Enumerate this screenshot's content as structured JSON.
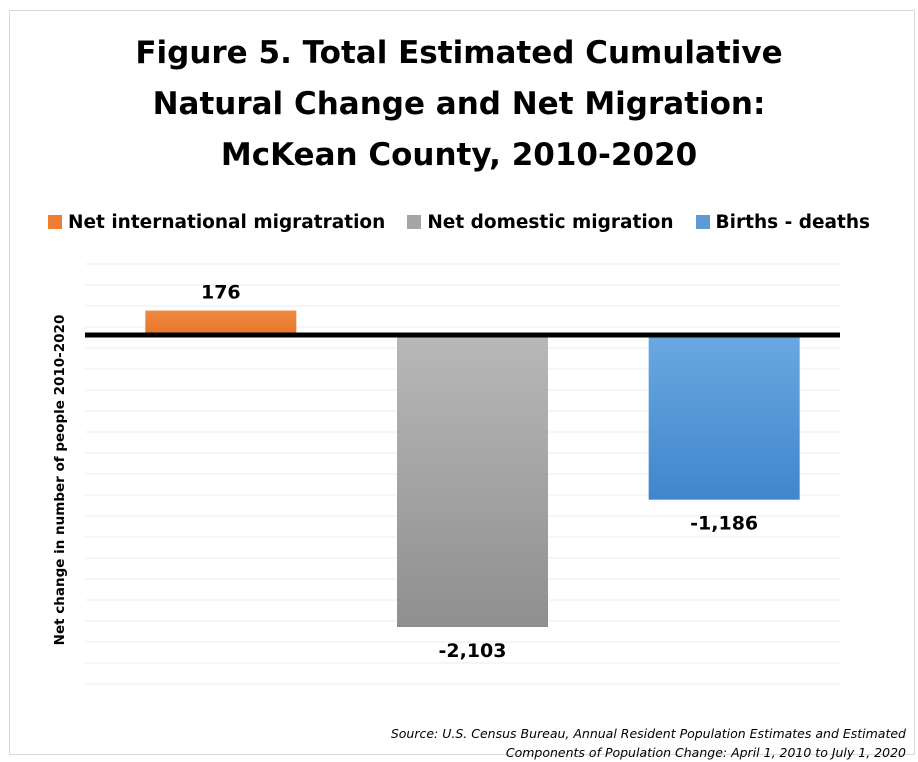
{
  "title_lines": [
    "Figure 5. Total Estimated Cumulative",
    "Natural Change and Net Migration:",
    "McKean County, 2010-2020"
  ],
  "legend": [
    {
      "label": "Net international migratration",
      "color": "#ed7d31"
    },
    {
      "label": "Net domestic migration",
      "color": "#a5a5a5"
    },
    {
      "label": "Births  - deaths",
      "color": "#5b9bd5"
    }
  ],
  "source_lines": [
    "Source: U.S. Census Bureau, Annual Resident Population Estimates and Estimated",
    "Components of Population Change: April 1, 2010 to July 1, 2020"
  ],
  "chart_data": {
    "type": "bar",
    "title": "Figure 5. Total Estimated Cumulative Natural Change and Net Migration: McKean County, 2010-2020",
    "ylabel": "Net change in number of people 2010-2020",
    "xlabel": "",
    "categories": [
      "Net international migratration",
      "Net domestic migration",
      "Births  - deaths"
    ],
    "values": [
      176,
      -2103,
      -1186
    ],
    "data_labels": [
      "176",
      "-2,103",
      "-1,186"
    ],
    "colors": [
      "#ed7d31",
      "#a5a5a5",
      "#5b9bd5"
    ],
    "ylim": [
      -2500,
      500
    ],
    "grid": true,
    "legend_position": "top"
  }
}
